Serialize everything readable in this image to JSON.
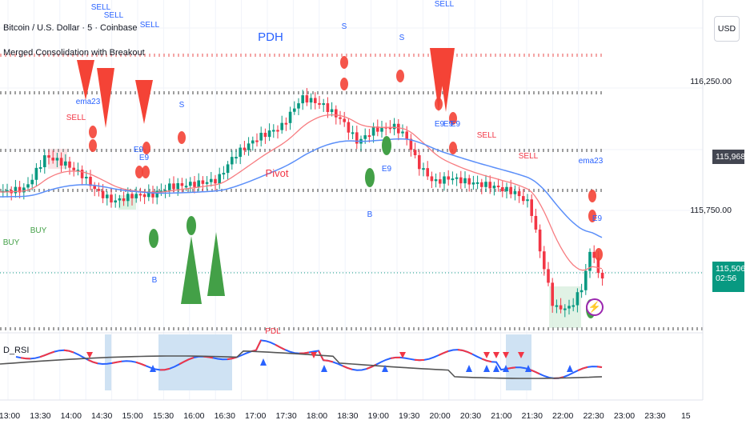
{
  "header": {
    "symbol_line": "Bitcoin / U.S. Dollar · 5 · Coinbase",
    "indicator_line": "Merged Consolidation with Breakout"
  },
  "currency_button": "USD",
  "price_axis": [
    "116,250.00",
    "115,750.00"
  ],
  "price_tags": {
    "level": "115,968.35",
    "last_price": "115,506.83",
    "countdown": "02:56"
  },
  "time_axis": [
    "13:00",
    "13:30",
    "14:00",
    "14:30",
    "15:00",
    "15:30",
    "16:00",
    "16:30",
    "17:00",
    "17:30",
    "18:00",
    "18:30",
    "19:00",
    "19:30",
    "20:00",
    "20:30",
    "21:00",
    "21:30",
    "22:00",
    "22:30",
    "23:00",
    "23:30",
    "15"
  ],
  "rsi_label": "D_RSI",
  "signal_labels": [
    {
      "t": "SELL",
      "c": "#2962ff"
    },
    {
      "t": "SELL",
      "c": "#2962ff"
    },
    {
      "t": "SELL",
      "c": "#2962ff"
    },
    {
      "t": "PDH",
      "c": "#2962ff"
    },
    {
      "t": "S",
      "c": "#2962ff"
    },
    {
      "t": "S",
      "c": "#2962ff"
    },
    {
      "t": "SELL",
      "c": "#2962ff"
    },
    {
      "t": "ema23",
      "c": "#2962ff"
    },
    {
      "t": "SELL",
      "c": "#f23645"
    },
    {
      "t": "S",
      "c": "#2962ff"
    },
    {
      "t": "E9",
      "c": "#2962ff"
    },
    {
      "t": "E9",
      "c": "#2962ff"
    },
    {
      "t": "Pivot",
      "c": "#f23645"
    },
    {
      "t": "E9",
      "c": "#2962ff"
    },
    {
      "t": "E9",
      "c": "#2962ff"
    },
    {
      "t": "E9",
      "c": "#2962ff"
    },
    {
      "t": "E9",
      "c": "#2962ff"
    },
    {
      "t": "SELL",
      "c": "#f23645"
    },
    {
      "t": "SELL",
      "c": "#f23645"
    },
    {
      "t": "ema23",
      "c": "#2962ff"
    },
    {
      "t": "E9",
      "c": "#2962ff"
    },
    {
      "t": "BUY",
      "c": "#43a047"
    },
    {
      "t": "BUY",
      "c": "#43a047"
    },
    {
      "t": "B",
      "c": "#2962ff"
    },
    {
      "t": "B",
      "c": "#2962ff"
    },
    {
      "t": "PDL",
      "c": "#f23645"
    }
  ],
  "colors": {
    "up": "#26a69a",
    "up_candle": "#089981",
    "down": "#f23645",
    "ema_fast": "#f77c80",
    "ema_slow": "#5b8ff9",
    "rsi": "#2962ff",
    "rsi_ma": "#555555",
    "buy": "#43a047",
    "sell": "#f44336",
    "level_tag": "#434651",
    "last_tag": "#089981"
  }
}
